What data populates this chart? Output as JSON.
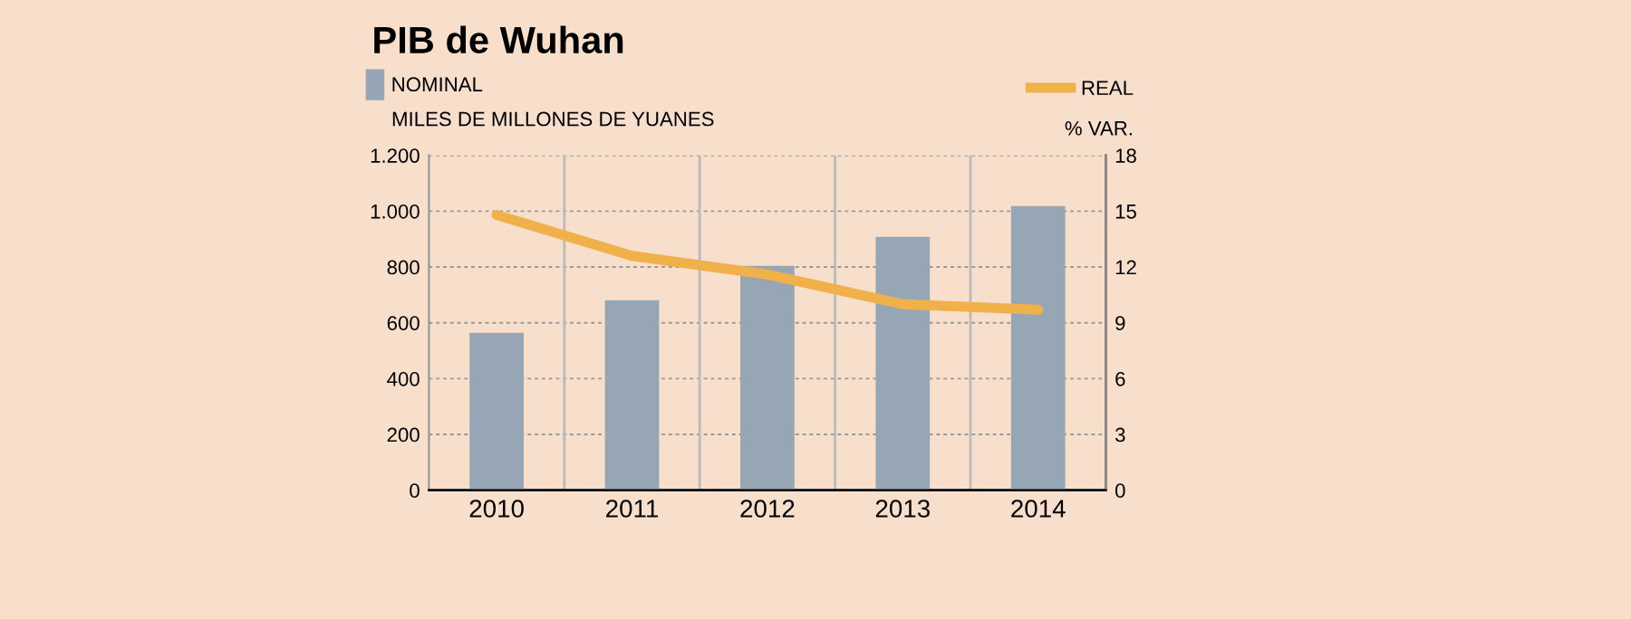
{
  "chart_data": {
    "type": "bar",
    "title": "PIB de Wuhan",
    "ylabel": "MILES DE MILLONES DE YUANES",
    "y2label": "% VAR.",
    "categories": [
      "2010",
      "2011",
      "2012",
      "2013",
      "2014"
    ],
    "series": [
      {
        "name": "NOMINAL",
        "color": "#97a6b4",
        "values": [
          564,
          681,
          804,
          908,
          1018
        ]
      },
      {
        "name": "REAL",
        "type": "line",
        "axis": "y2",
        "color": "#f0b04a",
        "values": [
          14.8,
          12.6,
          11.6,
          10.0,
          9.7
        ]
      }
    ],
    "ylim": [
      0,
      1200
    ],
    "yticks": [
      0,
      200,
      400,
      600,
      800,
      {
        "value": 1000,
        "label": "1.000"
      },
      {
        "value": 1200,
        "label": "1.200"
      }
    ],
    "y2lim": [
      0,
      18
    ],
    "y2ticks": [
      0,
      3,
      6,
      9,
      12,
      15,
      18
    ],
    "grid": true,
    "legend": "top",
    "marker": "none",
    "line_style": "solid"
  }
}
